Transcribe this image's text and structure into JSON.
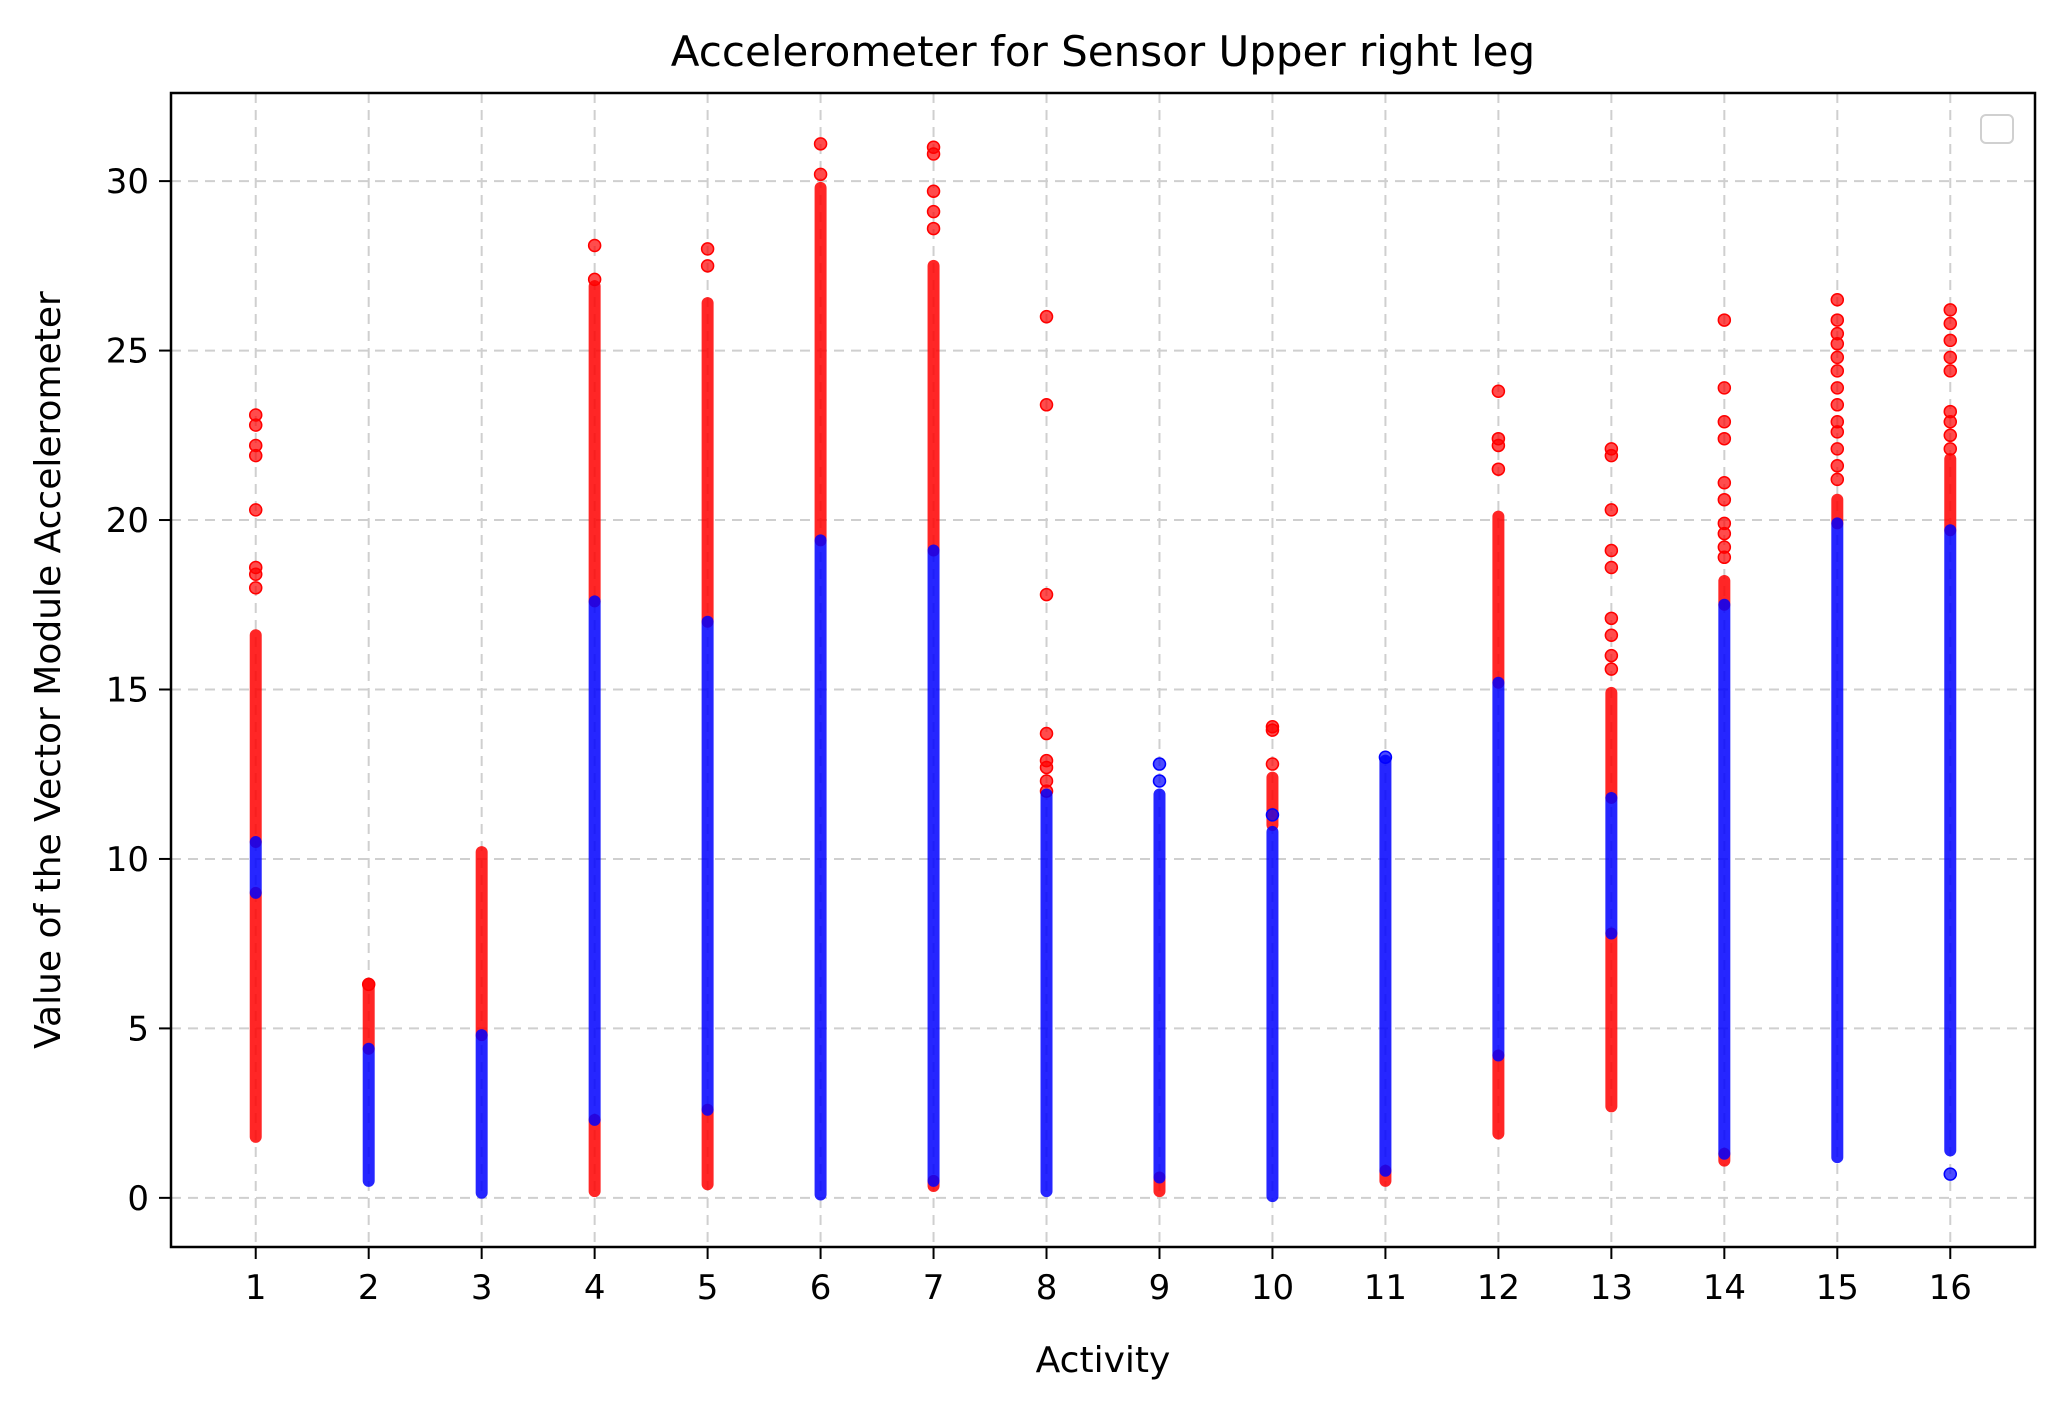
{
  "chart_data": {
    "type": "scatter",
    "title": "Accelerometer for Sensor Upper right leg",
    "xlabel": "Activity",
    "ylabel": "Value of the Vector Module Accelerometer",
    "xlim": [
      0.25,
      16.75
    ],
    "ylim": [
      -1.45,
      32.6
    ],
    "x_ticks": [
      1,
      2,
      3,
      4,
      5,
      6,
      7,
      8,
      9,
      10,
      11,
      12,
      13,
      14,
      15,
      16
    ],
    "y_ticks": [
      0,
      5,
      10,
      15,
      20,
      25,
      30
    ],
    "grid": true,
    "legend": {
      "placement": "top-right",
      "entries": []
    },
    "colors": {
      "outlier": "#ff0000",
      "inlier": "#0000ff"
    },
    "series": [
      {
        "color": "outlier",
        "ranges": [
          [
            1,
            1.8,
            9.0
          ],
          [
            1,
            10.5,
            16.6
          ],
          [
            2,
            4.4,
            6.3
          ],
          [
            3,
            4.8,
            10.2
          ],
          [
            4,
            0.2,
            2.3
          ],
          [
            4,
            17.6,
            26.9
          ],
          [
            5,
            0.4,
            2.6
          ],
          [
            5,
            17.0,
            26.4
          ],
          [
            6,
            19.4,
            29.8
          ],
          [
            7,
            0.35,
            0.5
          ],
          [
            7,
            19.1,
            27.5
          ],
          [
            9,
            0.2,
            0.6
          ],
          [
            10,
            11.0,
            12.4
          ],
          [
            11,
            0.5,
            0.8
          ],
          [
            12,
            1.9,
            4.2
          ],
          [
            12,
            15.2,
            20.1
          ],
          [
            13,
            2.7,
            7.8
          ],
          [
            13,
            11.8,
            14.9
          ],
          [
            14,
            1.1,
            1.3
          ],
          [
            14,
            17.5,
            18.2
          ],
          [
            15,
            19.9,
            20.6
          ],
          [
            16,
            19.7,
            21.8
          ]
        ],
        "points": [
          [
            1,
            23.1
          ],
          [
            1,
            22.8
          ],
          [
            1,
            22.2
          ],
          [
            1,
            21.9
          ],
          [
            1,
            20.3
          ],
          [
            1,
            18.6
          ],
          [
            1,
            18.4
          ],
          [
            1,
            18.0
          ],
          [
            2,
            6.3
          ],
          [
            4,
            27.1
          ],
          [
            4,
            28.1
          ],
          [
            5,
            27.5
          ],
          [
            5,
            28.0
          ],
          [
            6,
            30.2
          ],
          [
            6,
            31.1
          ],
          [
            7,
            28.6
          ],
          [
            7,
            29.1
          ],
          [
            7,
            29.7
          ],
          [
            7,
            30.8
          ],
          [
            7,
            31.0
          ],
          [
            8,
            26.0
          ],
          [
            8,
            23.4
          ],
          [
            8,
            17.8
          ],
          [
            8,
            13.7
          ],
          [
            8,
            12.9
          ],
          [
            8,
            12.7
          ],
          [
            8,
            12.3
          ],
          [
            8,
            12.0
          ],
          [
            10,
            13.9
          ],
          [
            10,
            13.8
          ],
          [
            10,
            12.8
          ],
          [
            12,
            23.8
          ],
          [
            12,
            22.4
          ],
          [
            12,
            22.2
          ],
          [
            12,
            21.5
          ],
          [
            13,
            22.1
          ],
          [
            13,
            21.9
          ],
          [
            13,
            20.3
          ],
          [
            13,
            19.1
          ],
          [
            13,
            18.6
          ],
          [
            13,
            17.1
          ],
          [
            13,
            16.6
          ],
          [
            13,
            16.0
          ],
          [
            13,
            15.6
          ],
          [
            14,
            25.9
          ],
          [
            14,
            23.9
          ],
          [
            14,
            22.9
          ],
          [
            14,
            22.4
          ],
          [
            14,
            21.1
          ],
          [
            14,
            20.6
          ],
          [
            14,
            19.9
          ],
          [
            14,
            19.6
          ],
          [
            14,
            19.2
          ],
          [
            14,
            18.9
          ],
          [
            15,
            26.5
          ],
          [
            15,
            25.9
          ],
          [
            15,
            25.5
          ],
          [
            15,
            25.2
          ],
          [
            15,
            24.8
          ],
          [
            15,
            24.4
          ],
          [
            15,
            23.9
          ],
          [
            15,
            23.4
          ],
          [
            15,
            22.9
          ],
          [
            15,
            22.6
          ],
          [
            15,
            22.1
          ],
          [
            15,
            21.6
          ],
          [
            15,
            21.2
          ],
          [
            16,
            26.2
          ],
          [
            16,
            25.8
          ],
          [
            16,
            25.3
          ],
          [
            16,
            24.8
          ],
          [
            16,
            24.4
          ],
          [
            16,
            23.2
          ],
          [
            16,
            22.9
          ],
          [
            16,
            22.5
          ],
          [
            16,
            22.1
          ]
        ]
      },
      {
        "color": "inlier",
        "ranges": [
          [
            1,
            9.0,
            10.5
          ],
          [
            2,
            0.5,
            4.4
          ],
          [
            3,
            0.15,
            4.8
          ],
          [
            4,
            2.3,
            17.6
          ],
          [
            5,
            2.6,
            17.0
          ],
          [
            6,
            0.1,
            19.4
          ],
          [
            7,
            0.5,
            19.1
          ],
          [
            8,
            0.2,
            11.9
          ],
          [
            9,
            0.6,
            11.9
          ],
          [
            10,
            0.05,
            10.8
          ],
          [
            11,
            0.8,
            12.9
          ],
          [
            12,
            4.2,
            15.2
          ],
          [
            13,
            7.8,
            11.8
          ],
          [
            14,
            1.3,
            17.5
          ],
          [
            15,
            1.2,
            19.9
          ],
          [
            16,
            1.4,
            19.7
          ]
        ],
        "points": [
          [
            9,
            12.3
          ],
          [
            9,
            12.8
          ],
          [
            10,
            11.3
          ],
          [
            11,
            13.0
          ],
          [
            16,
            0.7
          ]
        ]
      }
    ]
  }
}
